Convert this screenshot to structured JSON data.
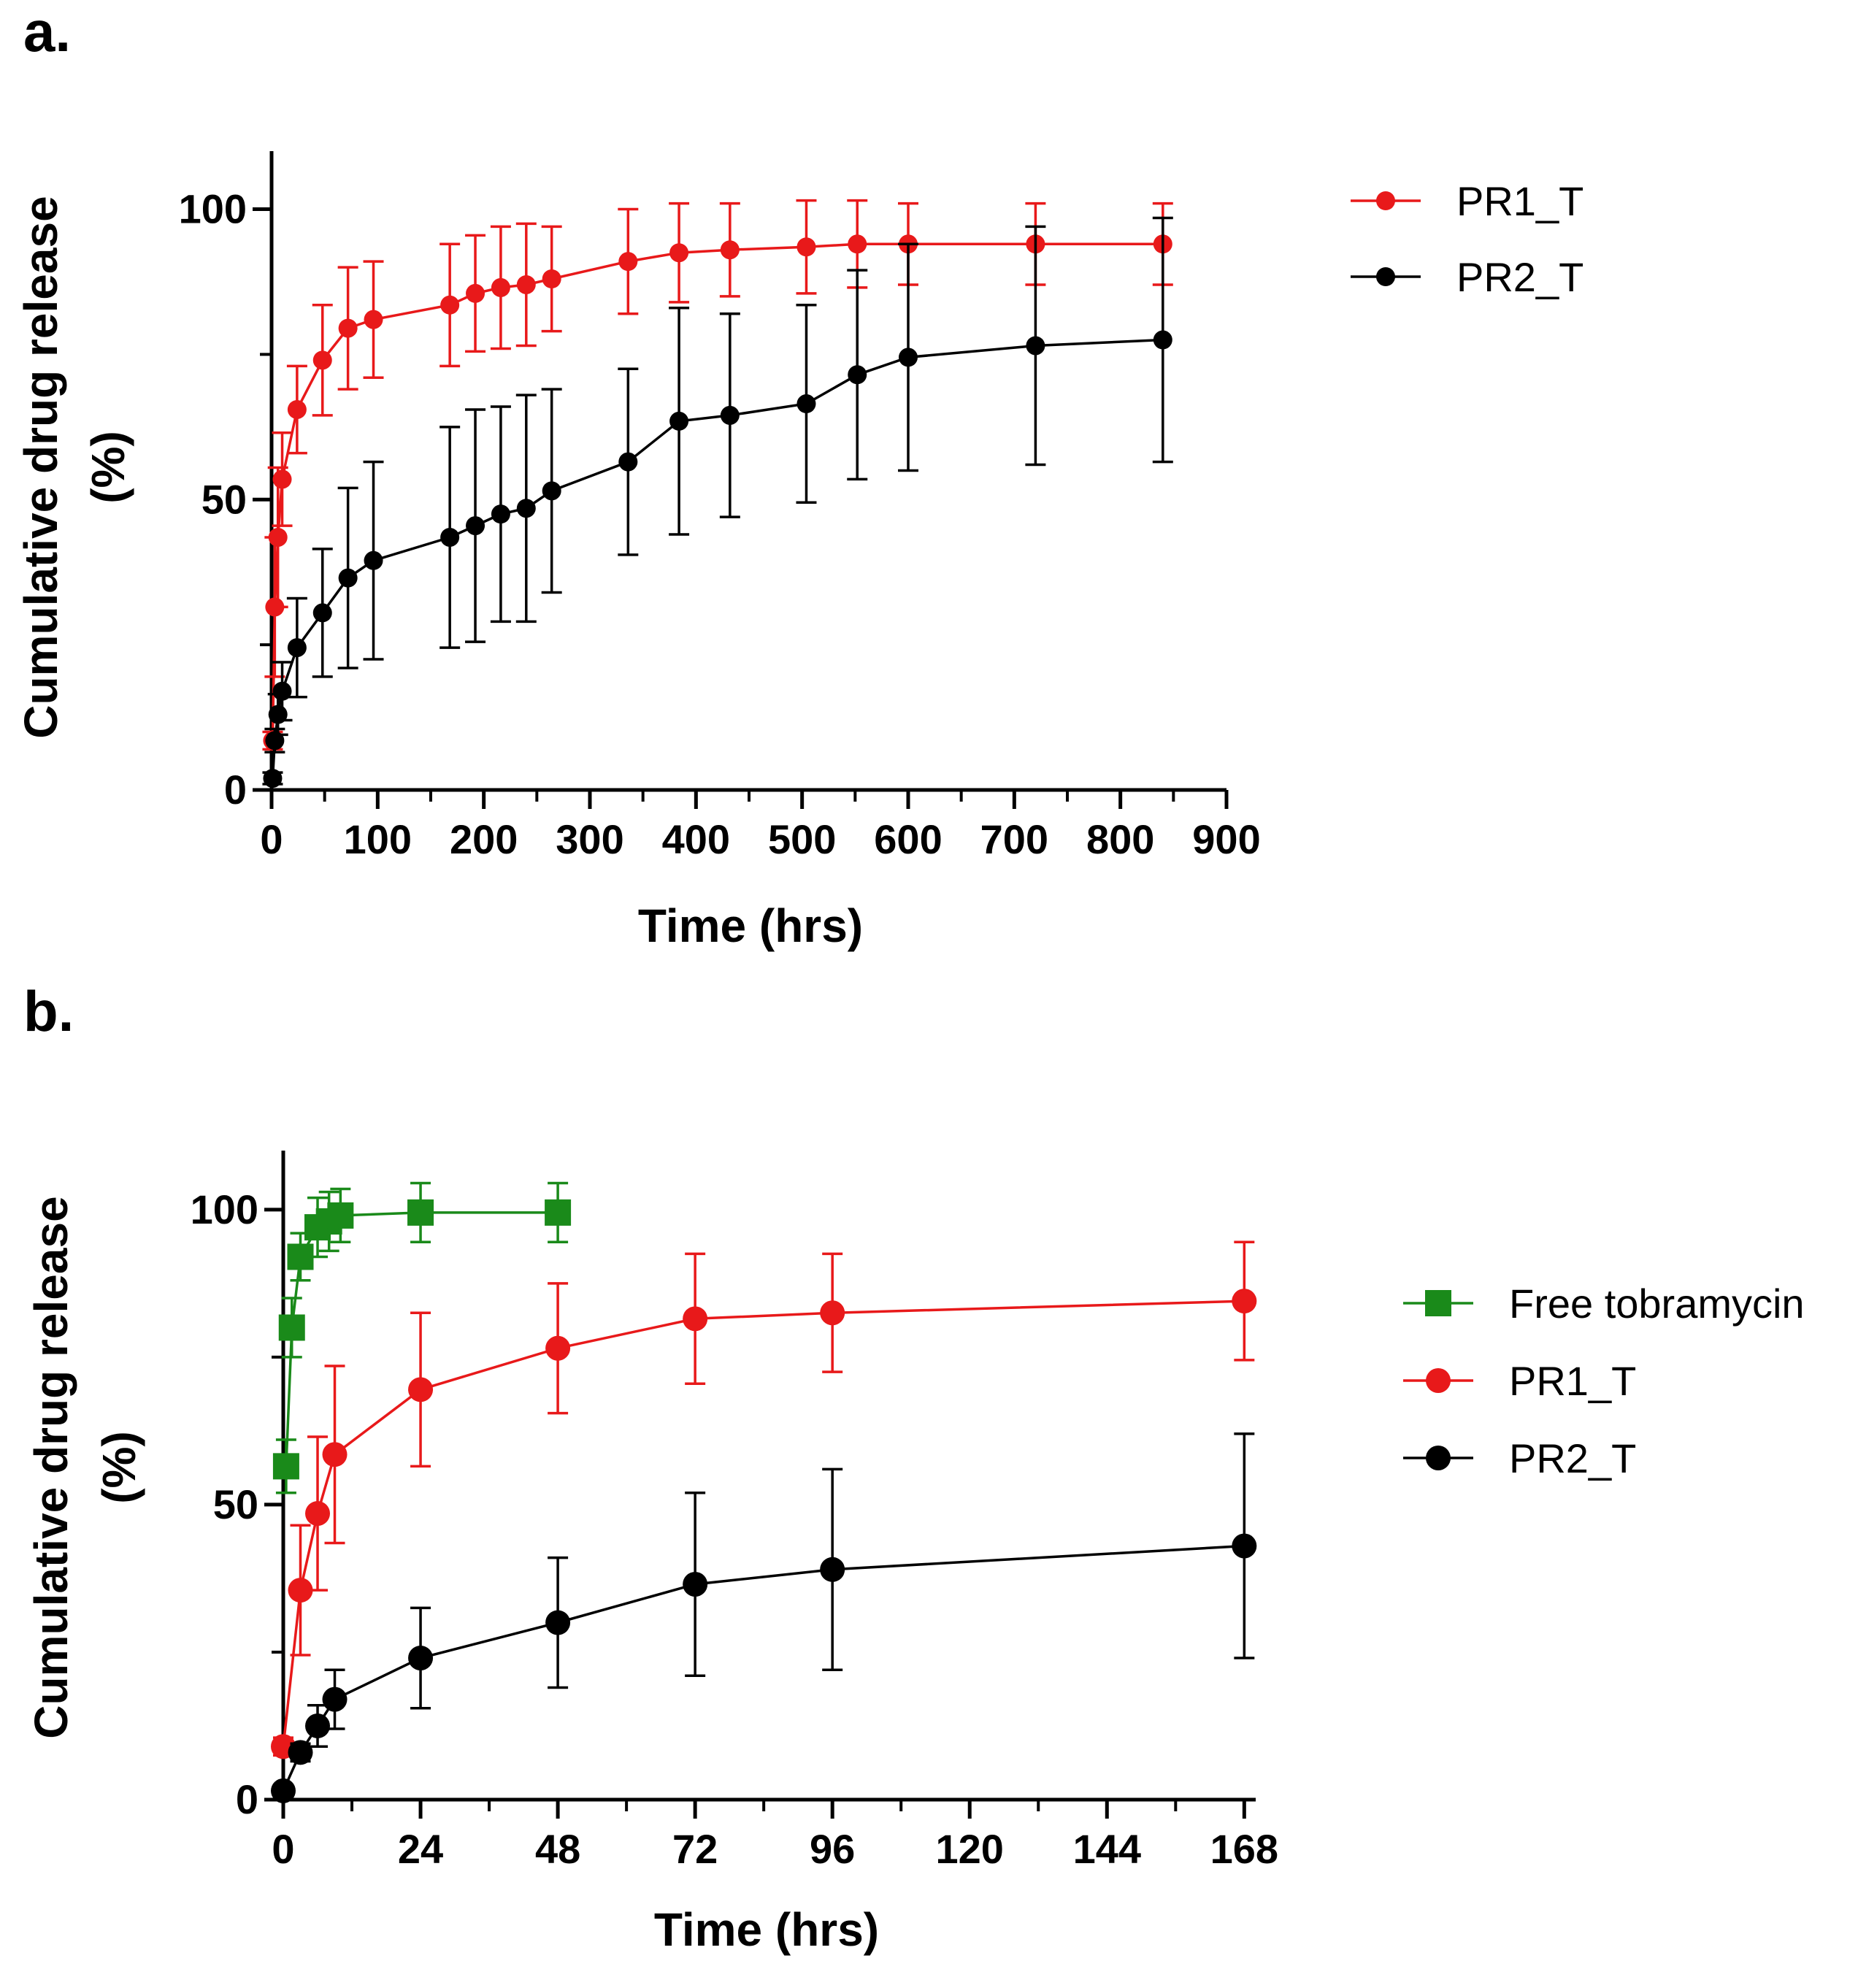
{
  "chart_data": [
    {
      "panel_label": "a.",
      "type": "line",
      "xlabel": "Time (hrs)",
      "ylabel_line1": "Cumulative drug release",
      "ylabel_line2": "(%)",
      "xlim": [
        0,
        900
      ],
      "ylim": [
        0,
        110
      ],
      "xticks": [
        0,
        100,
        200,
        300,
        400,
        500,
        600,
        700,
        800,
        900
      ],
      "xminor": [
        50,
        150,
        250,
        350,
        450,
        550,
        650,
        750,
        850
      ],
      "yticks": [
        0,
        50,
        100
      ],
      "yminor": [
        25,
        75
      ],
      "grid": false,
      "legend_position": "top-right, outside plot area",
      "series": [
        {
          "name": "PR1_T",
          "color": "#e8191a",
          "marker": "circle",
          "x": [
            1,
            3,
            6,
            10,
            24,
            48,
            72,
            96,
            168,
            192,
            216,
            240,
            264,
            336,
            384,
            432,
            504,
            552,
            600,
            720,
            840
          ],
          "y": [
            8.5,
            31.5,
            43.5,
            53.5,
            65.5,
            74,
            79.5,
            81,
            83.5,
            85.5,
            86.5,
            87,
            88,
            91,
            92.5,
            93,
            93.5,
            94,
            94,
            94,
            94
          ],
          "err": [
            1.5,
            12,
            12,
            8,
            7.5,
            9.5,
            10.5,
            10,
            10.5,
            10,
            10.5,
            10.5,
            9,
            9,
            8.5,
            8,
            8,
            7.5,
            7,
            7,
            7
          ]
        },
        {
          "name": "PR2_T",
          "color": "#000000",
          "marker": "circle",
          "x": [
            1,
            3,
            6,
            10,
            24,
            48,
            72,
            96,
            168,
            192,
            216,
            240,
            264,
            336,
            384,
            432,
            504,
            552,
            600,
            720,
            840
          ],
          "y": [
            2,
            8.5,
            13,
            17,
            24.5,
            30.5,
            36.5,
            39.5,
            43.5,
            45.5,
            47.5,
            48.5,
            51.5,
            56.5,
            63.5,
            64.5,
            66.5,
            71.5,
            74.5,
            76.5,
            77.5
          ],
          "err": [
            1,
            2,
            3.5,
            5,
            8.5,
            11,
            15.5,
            17,
            19,
            20,
            18.5,
            19.5,
            17.5,
            16,
            19.5,
            17.5,
            17,
            18,
            19.5,
            20.5,
            21
          ]
        }
      ]
    },
    {
      "panel_label": "b.",
      "type": "line",
      "xlabel": "Time (hrs)",
      "ylabel_line1": "Cumulative drug release",
      "ylabel_line2": "(%)",
      "xlim": [
        0,
        170
      ],
      "ylim": [
        0,
        110
      ],
      "xticks": [
        0,
        24,
        48,
        72,
        96,
        120,
        144,
        168
      ],
      "xminor": [
        12,
        36,
        60,
        84,
        108,
        132,
        156
      ],
      "yticks": [
        0,
        50,
        100
      ],
      "yminor": [
        25,
        75
      ],
      "grid": false,
      "legend_position": "right, outside plot area",
      "series": [
        {
          "name": "Free tobramycin",
          "color": "#1a8a1a",
          "marker": "square",
          "x": [
            0.5,
            1.5,
            3,
            6,
            8,
            10,
            24,
            48
          ],
          "y": [
            56.5,
            80,
            92,
            97,
            98,
            99,
            99.5,
            99.5
          ],
          "err": [
            4.5,
            5,
            4,
            5,
            5,
            4.5,
            5,
            5
          ]
        },
        {
          "name": "PR1_T",
          "color": "#e8191a",
          "marker": "circle",
          "x": [
            0,
            3,
            6,
            9,
            24,
            48,
            72,
            96,
            168
          ],
          "y": [
            9,
            35.5,
            48.5,
            58.5,
            69.5,
            76.5,
            81.5,
            82.5,
            84.5
          ],
          "err": [
            1.5,
            11,
            13,
            15,
            13,
            11,
            11,
            10,
            10
          ]
        },
        {
          "name": "PR2_T",
          "color": "#000000",
          "marker": "circle",
          "x": [
            0,
            3,
            6,
            9,
            24,
            48,
            72,
            96,
            168
          ],
          "y": [
            1.5,
            8,
            12.5,
            17,
            24,
            30,
            36.5,
            39,
            43
          ],
          "err": [
            1,
            1.5,
            3.5,
            5,
            8.5,
            11,
            15.5,
            17,
            19
          ]
        }
      ]
    }
  ]
}
